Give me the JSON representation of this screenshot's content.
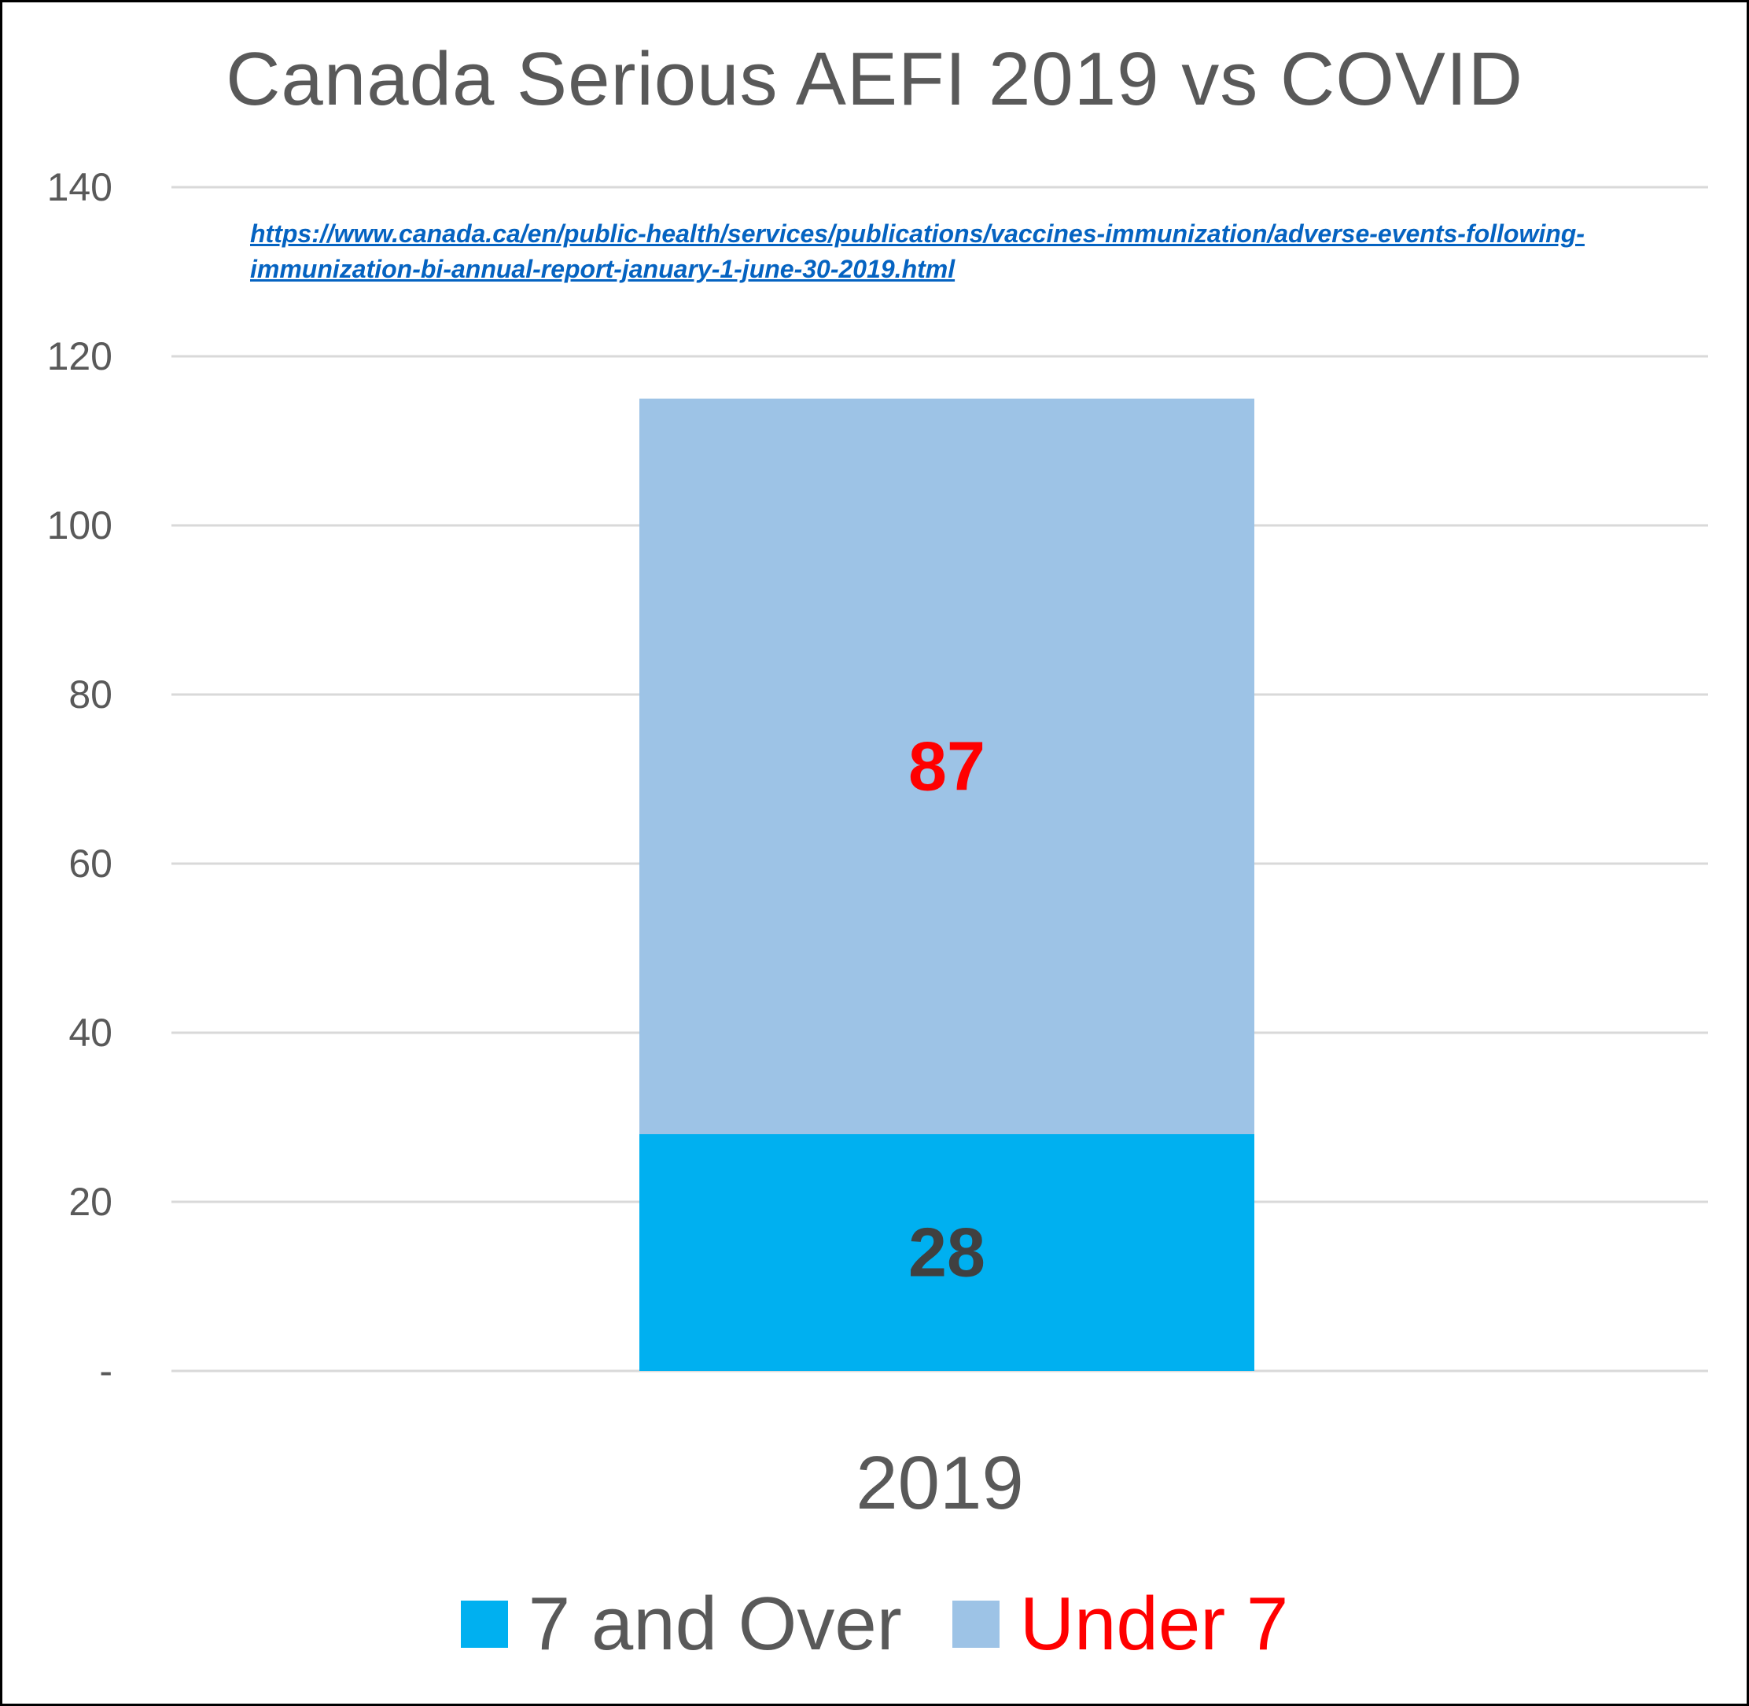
{
  "chart_data": {
    "type": "bar",
    "stacked": true,
    "title": "Canada Serious AEFI  2019 vs COVID",
    "source_url_line1": "https://www.canada.ca/en/public-health/services/publications/vaccines-immunization/adverse-events-following-",
    "source_url_line2": "immunization-bi-annual-report-january-1-june-30-2019.html",
    "categories": [
      "2019"
    ],
    "ylim": [
      0,
      140
    ],
    "yticks": [
      0,
      20,
      40,
      60,
      80,
      100,
      120,
      140
    ],
    "ytick_labels": [
      "-",
      "20",
      "40",
      "60",
      "80",
      "100",
      "120",
      "140"
    ],
    "grid": true,
    "legend_position": "bottom",
    "series": [
      {
        "name": "7 and Over",
        "values": [
          28
        ],
        "color": "#00B0F0",
        "label_color": "#404040",
        "legend_text_color": "#595959"
      },
      {
        "name": "Under 7",
        "values": [
          87
        ],
        "color": "#9DC3E6",
        "label_color": "#FF0000",
        "legend_text_color": "#FF0000"
      }
    ]
  }
}
